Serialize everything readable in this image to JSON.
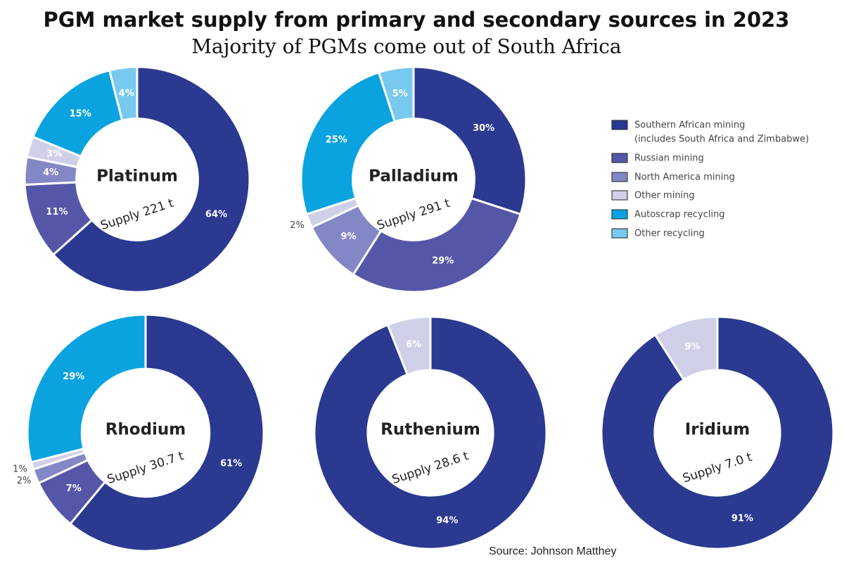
{
  "title": "PGM market supply from primary and secondary sources in 2023",
  "subtitle": "Majority of PGMs come out of South Africa",
  "source": "Source: Johnson Matthey",
  "legend": {
    "labels": [
      "Southern African mining",
      "Russian mining",
      "North America mining",
      "Other mining",
      "Autoscrap recycling",
      "Other recycling"
    ],
    "note": "(includes South Africa and Zimbabwe)",
    "colors": [
      "#2b3990",
      "#5457a8",
      "#8487c6",
      "#cfd0e8",
      "#0aa3e0",
      "#77c9ef"
    ]
  },
  "chart_data": [
    {
      "type": "pie",
      "name": "Platinum",
      "subtitle": "Supply 221 t",
      "values": [
        64,
        11,
        4,
        3,
        15,
        4
      ],
      "value_labels": [
        "64%",
        "11%",
        "4%",
        "3%",
        "15%",
        "4%"
      ]
    },
    {
      "type": "pie",
      "name": "Palladium",
      "subtitle": "Supply 291 t",
      "values": [
        30,
        29,
        9,
        2,
        25,
        5
      ],
      "value_labels": [
        "30%",
        "29%",
        "9%",
        "2%",
        "25%",
        "5%"
      ]
    },
    {
      "type": "pie",
      "name": "Rhodium",
      "subtitle": "Supply 30.7 t",
      "values": [
        61,
        7,
        2,
        1,
        29,
        null
      ],
      "value_labels": [
        "61%",
        "7%",
        "2%",
        "1%",
        "29%",
        null
      ]
    },
    {
      "type": "pie",
      "name": "Ruthenium",
      "subtitle": "Supply 28.6 t",
      "values": [
        94,
        null,
        null,
        6,
        null,
        null
      ],
      "value_labels": [
        "94%",
        null,
        null,
        "6%",
        null,
        null
      ]
    },
    {
      "type": "pie",
      "name": "Iridium",
      "subtitle": "Supply 7.0 t",
      "values": [
        91,
        null,
        null,
        9,
        null,
        null
      ],
      "value_labels": [
        "91%",
        null,
        null,
        "9%",
        null,
        null
      ]
    }
  ]
}
